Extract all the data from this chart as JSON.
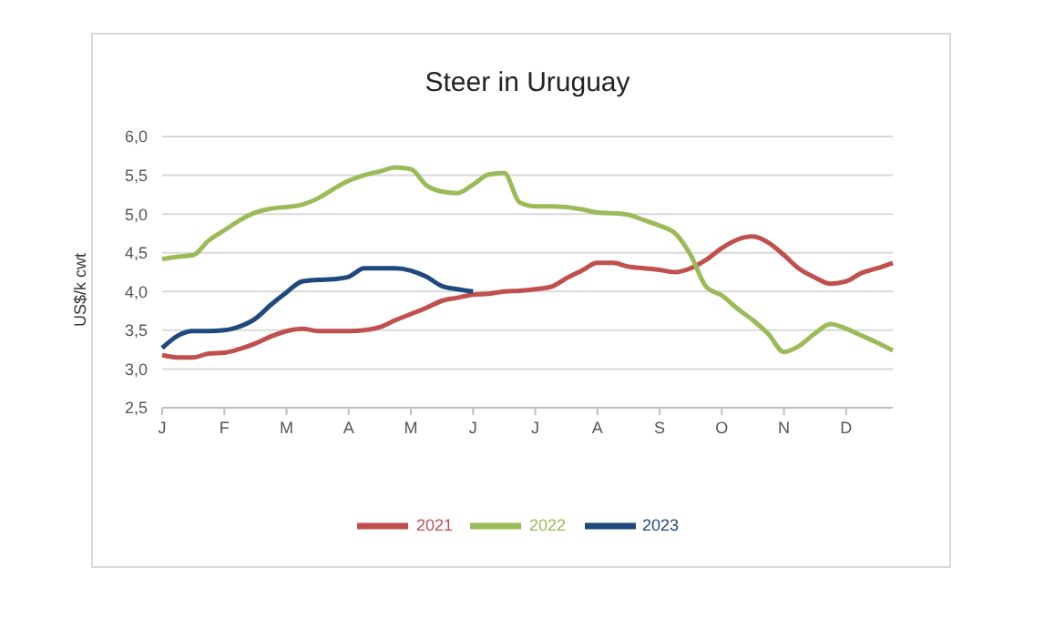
{
  "chart_data": {
    "type": "line",
    "title": "Steer  in Uruguay",
    "ylabel": "US$/k cwt",
    "categories": [
      "J",
      null,
      null,
      null,
      "F",
      null,
      null,
      null,
      "M",
      null,
      null,
      null,
      "A",
      null,
      null,
      null,
      "M",
      null,
      null,
      null,
      "J",
      null,
      null,
      null,
      "J",
      null,
      null,
      null,
      "A",
      null,
      null,
      null,
      "S",
      null,
      null,
      null,
      "O",
      null,
      null,
      null,
      "N",
      null,
      null,
      null,
      "D",
      null,
      null,
      null
    ],
    "ylim": [
      2.5,
      6
    ],
    "yticks": [
      {
        "value": 2.5,
        "label": "2,5"
      },
      {
        "value": 3,
        "label": "3,0"
      },
      {
        "value": 3.5,
        "label": "3,5"
      },
      {
        "value": 4,
        "label": "4,0"
      },
      {
        "value": 4.5,
        "label": "4,5"
      },
      {
        "value": 5,
        "label": "5,0"
      },
      {
        "value": 5.5,
        "label": "5,5"
      },
      {
        "value": 6,
        "label": "6,0"
      }
    ],
    "grid": "y",
    "legend": "bottom",
    "marker": "none",
    "line_style": "solid",
    "series": [
      {
        "name": "2021",
        "color": "#c0504d",
        "values": [
          3.18,
          3.15,
          3.15,
          3.2,
          3.21,
          3.26,
          3.33,
          3.42,
          3.49,
          3.52,
          3.49,
          3.49,
          3.49,
          3.5,
          3.54,
          3.63,
          3.71,
          3.79,
          3.88,
          3.92,
          3.96,
          3.97,
          4.0,
          4.01,
          4.03,
          4.06,
          4.17,
          4.27,
          4.37,
          4.37,
          4.32,
          4.3,
          4.28,
          4.25,
          4.3,
          4.41,
          4.56,
          4.67,
          4.71,
          4.63,
          4.47,
          4.29,
          4.18,
          4.1,
          4.13,
          4.24,
          4.3,
          4.37
        ]
      },
      {
        "name": "2022",
        "color": "#9bbb59",
        "values": [
          4.42,
          4.45,
          4.47,
          4.66,
          4.79,
          4.92,
          5.02,
          5.07,
          5.09,
          5.12,
          5.2,
          5.32,
          5.43,
          5.5,
          5.55,
          5.6,
          5.58,
          5.37,
          5.29,
          5.27,
          5.38,
          5.51,
          5.53,
          5.15,
          5.1,
          5.1,
          5.09,
          5.06,
          5.02,
          5.01,
          4.99,
          4.92,
          4.85,
          4.75,
          4.47,
          4.06,
          3.95,
          3.78,
          3.63,
          3.45,
          3.22,
          3.3,
          3.46,
          3.58,
          3.52,
          3.43,
          3.34,
          3.24
        ]
      },
      {
        "name": "2023",
        "color": "#1f497d",
        "values": [
          3.27,
          3.43,
          3.49,
          3.49,
          3.5,
          3.55,
          3.65,
          3.83,
          3.99,
          4.13,
          4.15,
          4.16,
          4.19,
          4.3,
          4.3,
          4.3,
          4.27,
          4.19,
          4.07,
          4.03,
          4.0,
          null,
          null,
          null,
          null,
          null,
          null,
          null,
          null,
          null,
          null,
          null,
          null,
          null,
          null,
          null,
          null,
          null,
          null,
          null,
          null,
          null,
          null,
          null,
          null,
          null,
          null,
          null
        ]
      }
    ]
  }
}
